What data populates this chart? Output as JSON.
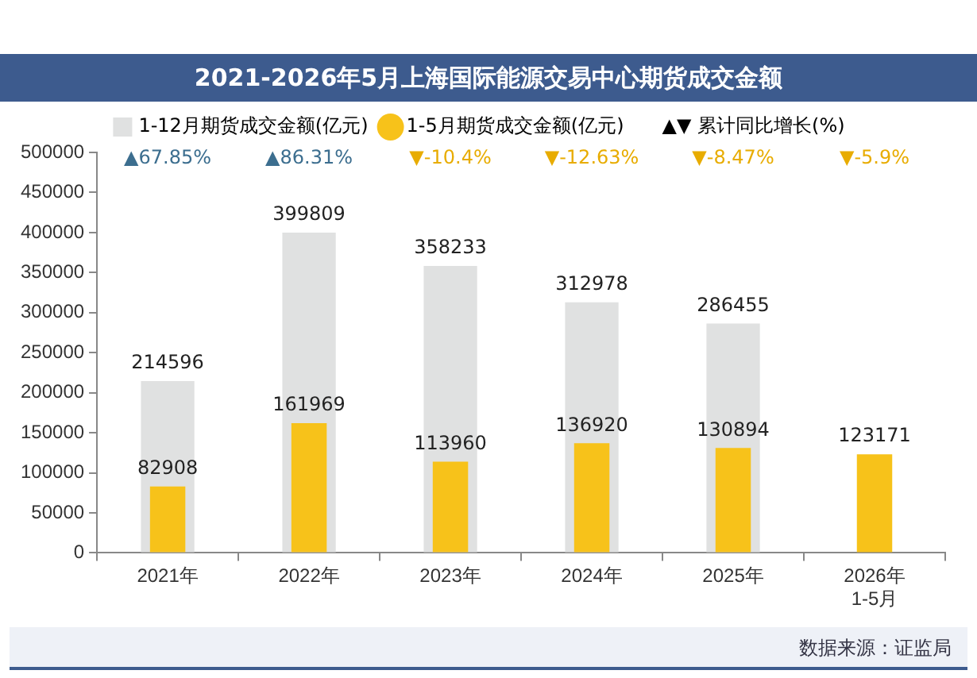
{
  "chart_data": {
    "type": "bar",
    "title": "2021-2026年5月上海国际能源交易中心期货成交金额",
    "categories": [
      "2021年",
      "2022年",
      "2023年",
      "2024年",
      "2025年",
      "2026年\n1-5月"
    ],
    "series": [
      {
        "name": "1-12月期货成交金额(亿元)",
        "color": "#e0e1e1",
        "values": [
          214596,
          399809,
          358233,
          312978,
          286455,
          null
        ]
      },
      {
        "name": "1-5月期货成交金额(亿元)",
        "color": "#f7c21a",
        "values": [
          82908,
          161969,
          113960,
          136920,
          130894,
          123171
        ]
      }
    ],
    "ylim": [
      0,
      500000
    ],
    "yticks": [
      0,
      50000,
      100000,
      150000,
      200000,
      250000,
      300000,
      350000,
      400000,
      450000,
      500000
    ],
    "grid": false,
    "legend": "top",
    "data_labels": true,
    "annotations": [
      "▲67.85%",
      "▲86.31%",
      "▼-10.4%",
      "▼-12.63%",
      "▼-8.47%",
      "▼-5.9%",
      "▲▼ 累计同比增长(%)",
      "数据来源：证监局"
    ]
  }
}
